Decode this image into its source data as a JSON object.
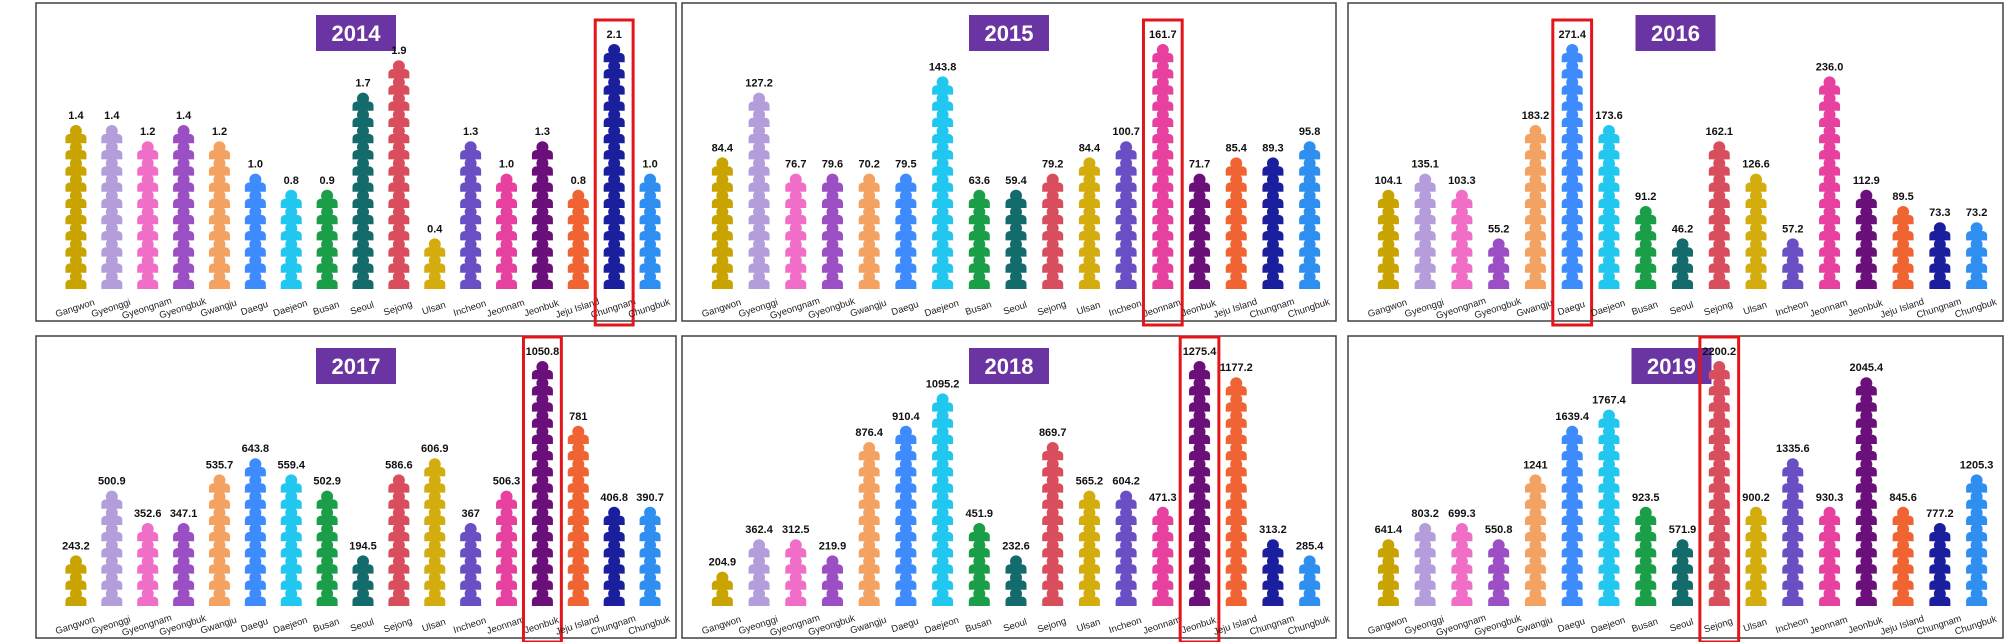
{
  "regions": [
    "Gangwon",
    "Gyeonggi",
    "Gyeongnam",
    "Gyeongbuk",
    "Gwangju",
    "Daegu",
    "Daejeon",
    "Busan",
    "Seoul",
    "Sejong",
    "Ulsan",
    "Incheon",
    "Jeonnam",
    "Jeonbuk",
    "Jeju Island",
    "Chungnam",
    "Chungbuk"
  ],
  "colors": [
    "#c9a400",
    "#b39ddb",
    "#f06ec8",
    "#9c4fc4",
    "#f4a261",
    "#3d8bfd",
    "#22c7f0",
    "#1a9e48",
    "#136b6b",
    "#d94e5d",
    "#d4ac0d",
    "#6a4fc4",
    "#e7419f",
    "#6b0f7a",
    "#f06434",
    "#1b1f9e",
    "#2f8ff0"
  ],
  "chart_data": [
    {
      "type": "pictograph-bar",
      "title": "2014",
      "highlight": "Chungnam",
      "max_icons": 15,
      "categories": [
        "Gangwon",
        "Gyeonggi",
        "Gyeongnam",
        "Gyeongbuk",
        "Gwangju",
        "Daegu",
        "Daejeon",
        "Busan",
        "Seoul",
        "Sejong",
        "Ulsan",
        "Incheon",
        "Jeonnam",
        "Jeonbuk",
        "Jeju Island",
        "Chungnam",
        "Chungbuk"
      ],
      "labels": [
        "1.4",
        "1.4",
        "1.2",
        "1.4",
        "1.2",
        "1.0",
        "0.8",
        "0.9",
        "1.7",
        "1.9",
        "0.4",
        "1.3",
        "1.0",
        "1.3",
        "0.8",
        "2.1",
        "1.0"
      ],
      "values": [
        1.4,
        1.4,
        1.2,
        1.4,
        1.2,
        1.0,
        0.8,
        0.9,
        1.7,
        1.9,
        0.4,
        1.3,
        1.0,
        1.3,
        0.8,
        2.1,
        1.0
      ]
    },
    {
      "type": "pictograph-bar",
      "title": "2015",
      "highlight": "Jeonnam",
      "max_icons": 15,
      "categories": [
        "Gangwon",
        "Gyeonggi",
        "Gyeongnam",
        "Gyeongbuk",
        "Gwangju",
        "Daegu",
        "Daejeon",
        "Busan",
        "Seoul",
        "Sejong",
        "Ulsan",
        "Incheon",
        "Jeonnam",
        "Jeonbuk",
        "Jeju Island",
        "Chungnam",
        "Chungbuk"
      ],
      "labels": [
        "84.4",
        "127.2",
        "76.7",
        "79.6",
        "70.2",
        "79.5",
        "143.8",
        "63.6",
        "59.4",
        "79.2",
        "84.4",
        "100.7",
        "161.7",
        "71.7",
        "85.4",
        "89.3",
        "95.8"
      ],
      "values": [
        84.4,
        127.2,
        76.7,
        79.6,
        70.2,
        79.5,
        143.8,
        63.6,
        59.4,
        79.2,
        84.4,
        100.7,
        161.7,
        71.7,
        85.4,
        89.3,
        95.8
      ]
    },
    {
      "type": "pictograph-bar",
      "title": "2016",
      "highlight": "Daegu",
      "max_icons": 15,
      "categories": [
        "Gangwon",
        "Gyeonggi",
        "Gyeongnam",
        "Gyeongbuk",
        "Gwangju",
        "Daegu",
        "Daejeon",
        "Busan",
        "Seoul",
        "Sejong",
        "Ulsan",
        "Incheon",
        "Jeonnam",
        "Jeonbuk",
        "Jeju Island",
        "Chungnam",
        "Chungbuk"
      ],
      "labels": [
        "104.1",
        "135.1",
        "103.3",
        "55.2",
        "183.2",
        "271.4",
        "173.6",
        "91.2",
        "46.2",
        "162.1",
        "126.6",
        "57.2",
        "236.0",
        "112.9",
        "89.5",
        "73.3",
        "73.2"
      ],
      "values": [
        104.1,
        135.1,
        103.3,
        55.2,
        183.2,
        271.4,
        173.6,
        91.2,
        46.2,
        162.1,
        126.6,
        57.2,
        236.0,
        112.9,
        89.5,
        73.3,
        73.2
      ]
    },
    {
      "type": "pictograph-bar",
      "title": "2017",
      "highlight": "Jeonbuk",
      "max_icons": 15,
      "categories": [
        "Gangwon",
        "Gyeonggi",
        "Gyeongnam",
        "Gyeongbuk",
        "Gwangju",
        "Daegu",
        "Daejeon",
        "Busan",
        "Seoul",
        "Sejong",
        "Ulsan",
        "Incheon",
        "Jeonnam",
        "Jeonbuk",
        "Jeju Island",
        "Chungnam",
        "Chungbuk"
      ],
      "labels": [
        "243.2",
        "500.9",
        "352.6",
        "347.1",
        "535.7",
        "643.8",
        "559.4",
        "502.9",
        "194.5",
        "586.6",
        "606.9",
        "367",
        "506.3",
        "1050.8",
        "781",
        "406.8",
        "390.7"
      ],
      "values": [
        243.2,
        500.9,
        352.6,
        347.1,
        535.7,
        643.8,
        559.4,
        502.9,
        194.5,
        586.6,
        606.9,
        367,
        506.3,
        1050.8,
        781,
        406.8,
        390.7
      ]
    },
    {
      "type": "pictograph-bar",
      "title": "2018",
      "highlight": "Jeonbuk",
      "max_icons": 15,
      "categories": [
        "Gangwon",
        "Gyeonggi",
        "Gyeongnam",
        "Gyeongbuk",
        "Gwangju",
        "Daegu",
        "Daejeon",
        "Busan",
        "Seoul",
        "Sejong",
        "Ulsan",
        "Incheon",
        "Jeonnam",
        "Jeonbuk",
        "Jeju Island",
        "Chungnam",
        "Chungbuk"
      ],
      "labels": [
        "204.9",
        "362.4",
        "312.5",
        "219.9",
        "876.4",
        "910.4",
        "1095.2",
        "451.9",
        "232.6",
        "869.7",
        "565.2",
        "604.2",
        "471.3",
        "1275.4",
        "1177.2",
        "313.2",
        "285.4"
      ],
      "values": [
        204.9,
        362.4,
        312.5,
        219.9,
        876.4,
        910.4,
        1095.2,
        451.9,
        232.6,
        869.7,
        565.2,
        604.2,
        471.3,
        1275.4,
        1177.2,
        313.2,
        285.4
      ]
    },
    {
      "type": "pictograph-bar",
      "title": "2019",
      "highlight": "Sejong",
      "max_icons": 15,
      "categories": [
        "Gangwon",
        "Gyeonggi",
        "Gyeongnam",
        "Gyeongbuk",
        "Gwangju",
        "Daegu",
        "Daejeon",
        "Busan",
        "Seoul",
        "Sejong",
        "Ulsan",
        "Incheon",
        "Jeonnam",
        "Jeonbuk",
        "Jeju Island",
        "Chungnam",
        "Chungbuk"
      ],
      "labels": [
        "641.4",
        "803.2",
        "699.3",
        "550.8",
        "1241",
        "1639.4",
        "1767.4",
        "923.5",
        "571.9",
        "2200.2",
        "900.2",
        "1335.6",
        "930.3",
        "2045.4",
        "845.6",
        "777.2",
        "1205.3"
      ],
      "values": [
        641.4,
        803.2,
        699.3,
        550.8,
        1241,
        1639.4,
        1767.4,
        923.5,
        571.9,
        2200.2,
        900.2,
        1335.6,
        930.3,
        2045.4,
        845.6,
        777.2,
        1205.3
      ]
    }
  ]
}
